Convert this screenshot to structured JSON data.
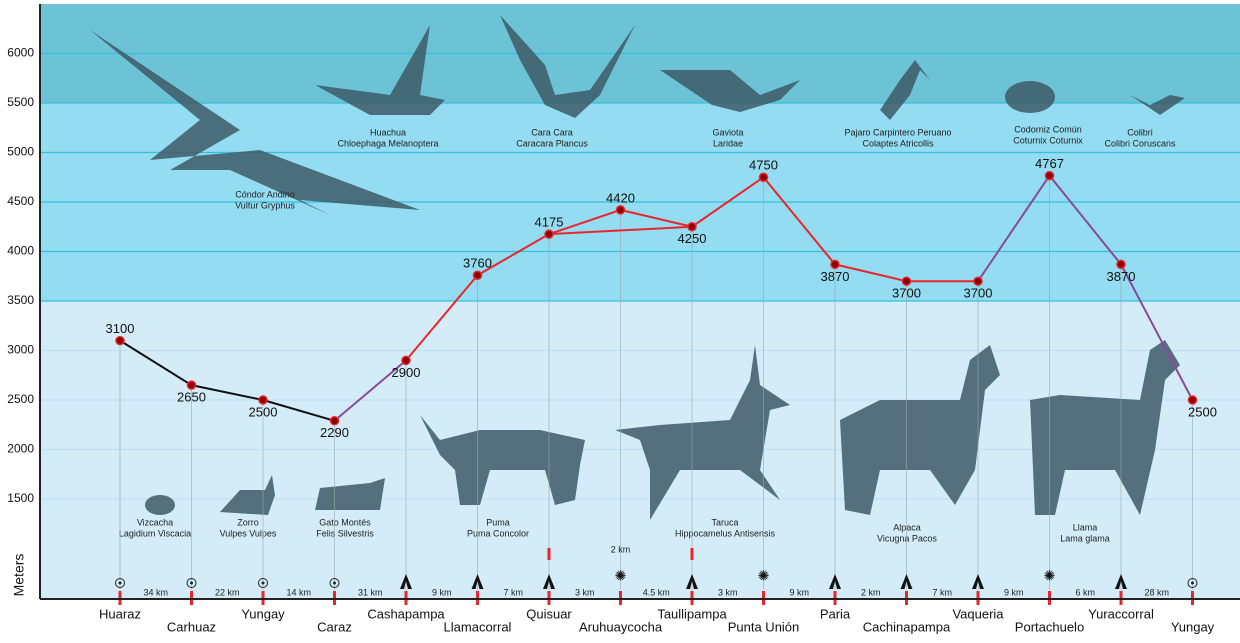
{
  "chart_data": {
    "type": "elevation-profile",
    "y_label": "Meters",
    "ylim": [
      500,
      6500
    ],
    "yticks": [
      1500,
      2000,
      2500,
      3000,
      3500,
      4000,
      4500,
      5000,
      5500,
      6000
    ],
    "grid": true,
    "categories": [
      "Huaraz",
      "Carhuaz",
      "Yungay",
      "Caraz",
      "Cashapampa",
      "Llamacorral",
      "Quisuar",
      "Aruhuaycocha",
      "Taullipampa",
      "Punta Unión",
      "Paria",
      "Cachinapampa",
      "Vaqueria",
      "Portachuelo",
      "Yuraccorral",
      "Yungay"
    ],
    "values": [
      3100,
      2650,
      2500,
      2290,
      2900,
      3760,
      4175,
      null,
      4250,
      4750,
      3870,
      3700,
      3700,
      4767,
      3870,
      2500
    ],
    "segment_colors": [
      "#111111",
      "#111111",
      "#111111",
      "#8a4a9a",
      "#e8262b",
      "#e8262b",
      "#e8262b",
      "#e8262b",
      "#e8262b",
      "#e8262b",
      "#e8262b",
      "#e8262b",
      "#8a4a9a",
      "#8a4a9a",
      "#8a4a9a"
    ],
    "branch": {
      "values": [
        null,
        null,
        null,
        null,
        null,
        null,
        null,
        4420,
        null,
        null,
        null,
        null,
        null,
        null,
        null,
        null
      ],
      "color": "#e8262b"
    },
    "distances": [
      "34 km",
      "22 km",
      "14 km",
      "31 km",
      "9 km",
      "7 km",
      "3 km",
      "4.5  km",
      "3 km",
      "9 km",
      "2 km",
      "7 km",
      "9 km",
      "6 km",
      "28 km"
    ],
    "branch_distance": "2 km",
    "birds": [
      {
        "name": "Cóndor Andino",
        "latin": "Vultur Gryphus"
      },
      {
        "name": "Huachua",
        "latin": "Chloephaga Melanoptera"
      },
      {
        "name": "Cara Cara",
        "latin": "Caracara Plancus"
      },
      {
        "name": "Gaviota",
        "latin": "Laridae"
      },
      {
        "name": "Pajaro Carpintero Peruano",
        "latin": "Colaptes Atricollis"
      },
      {
        "name": "Codorniz Común",
        "latin": "Coturnix Coturnix"
      },
      {
        "name": "Colibri",
        "latin": "Colibri Coruscans"
      }
    ],
    "mammals": [
      {
        "name": "Vizcacha",
        "latin": "Lagidium Viscacia"
      },
      {
        "name": "Zorro",
        "latin": "Vulpes Vulpes"
      },
      {
        "name": "Gato Montés",
        "latin": "Felis Silvestris"
      },
      {
        "name": "Puma",
        "latin": "Puma Concolor"
      },
      {
        "name": "Taruca",
        "latin": "Hippocamelus Antisensis"
      },
      {
        "name": "Alpaca",
        "latin": "Vicugna Pacos"
      },
      {
        "name": "Llama",
        "latin": "Lama glama"
      }
    ]
  }
}
